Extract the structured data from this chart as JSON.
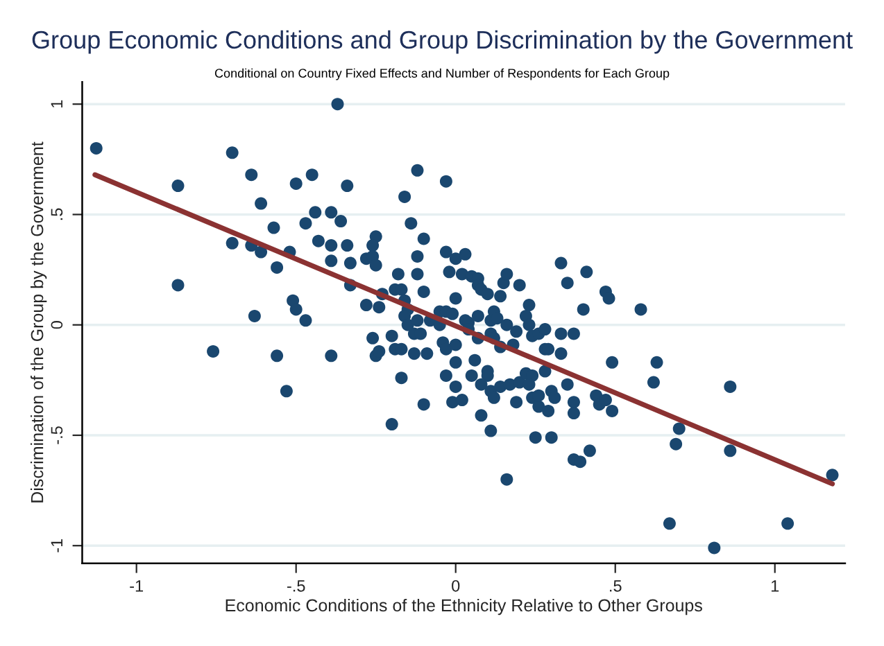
{
  "chart_data": {
    "type": "scatter",
    "title": "Group Economic Conditions and Group Discrimination by the Government",
    "subtitle": "Conditional on Country Fixed Effects and Number of Respondents for Each Group",
    "xlabel": "Economic Conditions of the Ethnicity Relative to Other Groups",
    "ylabel": "Discrimination of the Group by the Government",
    "xlim": [
      -1.17,
      1.22
    ],
    "ylim": [
      -1.08,
      1.1
    ],
    "xticks": [
      -1,
      {
        "value": -0.5,
        "label": "-.5"
      },
      0,
      {
        "value": 0.5,
        "label": ".5"
      },
      1
    ],
    "yticks": [
      -1,
      {
        "value": -0.5,
        "label": "-.5"
      },
      0,
      {
        "value": 0.5,
        "label": ".5"
      },
      1
    ],
    "grid": "y",
    "legend": false,
    "series": [
      {
        "marker": "circle",
        "color": "#1a476f",
        "x": [
          -1.126,
          -0.7,
          -0.87,
          -0.64,
          -0.5,
          -0.45,
          -0.61,
          -0.44,
          -0.39,
          -0.47,
          -0.57,
          -0.7,
          -0.64,
          -0.61,
          -0.52,
          -0.43,
          -0.39,
          -0.39,
          -0.56,
          -0.87,
          -0.51,
          -0.5,
          -0.47,
          -0.63,
          -0.76,
          -0.56,
          -0.39,
          -0.53,
          -0.37,
          -0.34,
          -0.12,
          -0.03,
          -0.16,
          -0.36,
          -0.14,
          -0.34,
          -0.25,
          -0.26,
          -0.1,
          -0.33,
          -0.28,
          -0.26,
          -0.25,
          -0.12,
          -0.03,
          0.0,
          0.03,
          -0.18,
          -0.12,
          -0.02,
          0.02,
          0.05,
          0.07,
          0.07,
          0.08,
          0.1,
          0.14,
          0.15,
          0.16,
          0.2,
          0.33,
          0.35,
          0.4,
          -0.33,
          -0.28,
          -0.24,
          -0.23,
          -0.19,
          -0.17,
          -0.16,
          -0.15,
          -0.16,
          -0.15,
          -0.12,
          -0.1,
          -0.08,
          -0.05,
          -0.05,
          -0.03,
          -0.01,
          0.0,
          0.03,
          0.04,
          0.07,
          0.07,
          0.04,
          0.11,
          0.12,
          0.13,
          0.16,
          0.19,
          0.23,
          0.22,
          0.23,
          0.24,
          0.26,
          0.28,
          0.33,
          0.37,
          0.11,
          0.12,
          0.14,
          0.18,
          -0.26,
          -0.25,
          -0.24,
          -0.2,
          -0.19,
          -0.17,
          -0.13,
          -0.11,
          -0.13,
          -0.09,
          -0.04,
          -0.03,
          0.0,
          0.0,
          -0.03,
          0.0,
          -0.01,
          0.02,
          0.06,
          0.05,
          0.1,
          0.1,
          0.08,
          0.11,
          0.12,
          0.14,
          0.17,
          0.19,
          0.2,
          0.22,
          0.24,
          0.23,
          0.24,
          0.26,
          0.26,
          0.28,
          0.28,
          0.29,
          0.3,
          0.31,
          0.35,
          0.37,
          0.37,
          0.29,
          0.08,
          0.11,
          -0.1,
          -0.2,
          -0.17,
          0.25,
          0.3,
          0.37,
          0.39,
          0.16,
          0.41,
          0.47,
          0.48,
          0.58,
          0.33,
          0.49,
          0.63,
          0.62,
          0.86,
          0.44,
          0.45,
          0.47,
          0.49,
          0.7,
          0.69,
          0.86,
          0.42,
          1.18,
          0.67,
          1.04,
          0.81
        ],
        "values": [
          0.8,
          0.78,
          0.63,
          0.68,
          0.64,
          0.68,
          0.55,
          0.51,
          0.51,
          0.46,
          0.44,
          0.37,
          0.36,
          0.33,
          0.33,
          0.38,
          0.36,
          0.29,
          0.26,
          0.18,
          0.11,
          0.07,
          0.02,
          0.04,
          -0.12,
          -0.14,
          -0.14,
          -0.3,
          1.0,
          0.63,
          0.7,
          0.65,
          0.58,
          0.47,
          0.46,
          0.36,
          0.4,
          0.36,
          0.39,
          0.28,
          0.3,
          0.31,
          0.27,
          0.31,
          0.33,
          0.3,
          0.32,
          0.23,
          0.23,
          0.24,
          0.23,
          0.22,
          0.21,
          0.18,
          0.16,
          0.14,
          0.13,
          0.19,
          0.23,
          0.18,
          0.28,
          0.19,
          0.07,
          0.18,
          0.09,
          0.08,
          0.14,
          0.16,
          0.16,
          0.11,
          0.07,
          0.04,
          0.0,
          0.02,
          0.15,
          0.02,
          0.06,
          0.0,
          0.06,
          0.05,
          0.12,
          0.02,
          0.01,
          0.04,
          -0.06,
          -0.02,
          0.02,
          0.06,
          0.03,
          0.0,
          -0.03,
          0.09,
          0.04,
          0.0,
          -0.05,
          -0.04,
          -0.02,
          -0.04,
          -0.04,
          -0.04,
          -0.06,
          -0.1,
          -0.09,
          -0.06,
          -0.14,
          -0.12,
          -0.05,
          -0.11,
          -0.11,
          -0.04,
          -0.04,
          -0.13,
          -0.13,
          -0.08,
          -0.11,
          -0.09,
          -0.17,
          -0.23,
          -0.28,
          -0.35,
          -0.34,
          -0.16,
          -0.23,
          -0.21,
          -0.23,
          -0.27,
          -0.3,
          -0.33,
          -0.28,
          -0.27,
          -0.35,
          -0.26,
          -0.22,
          -0.23,
          -0.27,
          -0.33,
          -0.37,
          -0.32,
          -0.21,
          -0.11,
          -0.11,
          -0.3,
          -0.33,
          -0.27,
          -0.35,
          -0.4,
          -0.39,
          -0.41,
          -0.48,
          -0.36,
          -0.45,
          -0.24,
          -0.51,
          -0.51,
          -0.61,
          -0.62,
          -0.7,
          0.24,
          0.15,
          0.12,
          0.07,
          -0.13,
          -0.17,
          -0.17,
          -0.26,
          -0.28,
          -0.32,
          -0.36,
          -0.34,
          -0.39,
          -0.47,
          -0.54,
          -0.57,
          -0.57,
          -0.68,
          -0.9,
          -0.9,
          -1.01
        ]
      },
      {
        "type": "line",
        "marker": "none",
        "color": "#8b3232",
        "x": [
          -1.13,
          1.18
        ],
        "values": [
          0.68,
          -0.72
        ]
      }
    ]
  }
}
